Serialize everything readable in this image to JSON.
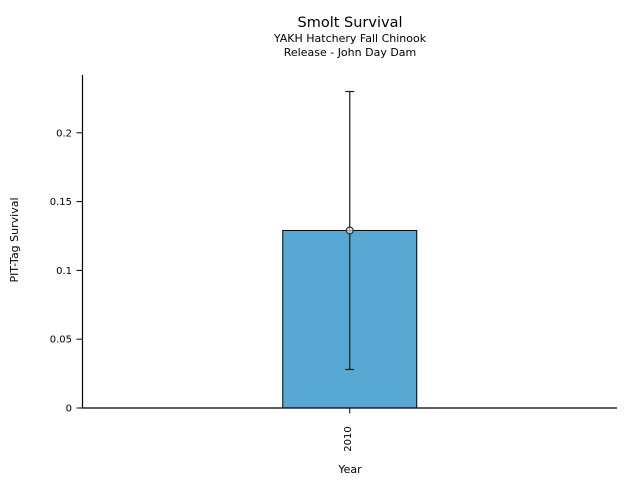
{
  "window": {
    "background": "#ffffff"
  },
  "chart_data": {
    "type": "bar",
    "title": "Smolt Survival",
    "subtitle_line1": "YAKH Hatchery Fall Chinook",
    "subtitle_line2": "Release - John Day Dam",
    "xlabel": "Year",
    "ylabel": "PIT-Tag Survival",
    "categories": [
      "2010"
    ],
    "values": [
      0.129
    ],
    "error_low": [
      0.028
    ],
    "error_high": [
      0.23
    ],
    "y_ticks": [
      0,
      0.05,
      0.1,
      0.15,
      0.2
    ],
    "y_tick_labels": [
      "0",
      "0.05",
      "0.1",
      "0.15",
      "0.2"
    ],
    "ylim": [
      0,
      0.242
    ],
    "grid": false,
    "legend_position": "none",
    "x_tick_rotation": 90,
    "marker": "open-circle",
    "colors": {
      "bar_fill": "#58A8D4",
      "bar_edge": "#000000",
      "error_bar": "#1a1a1a",
      "marker_edge": "#2f2f2f",
      "marker_fill": "#ffffff",
      "axis": "#000000"
    }
  }
}
